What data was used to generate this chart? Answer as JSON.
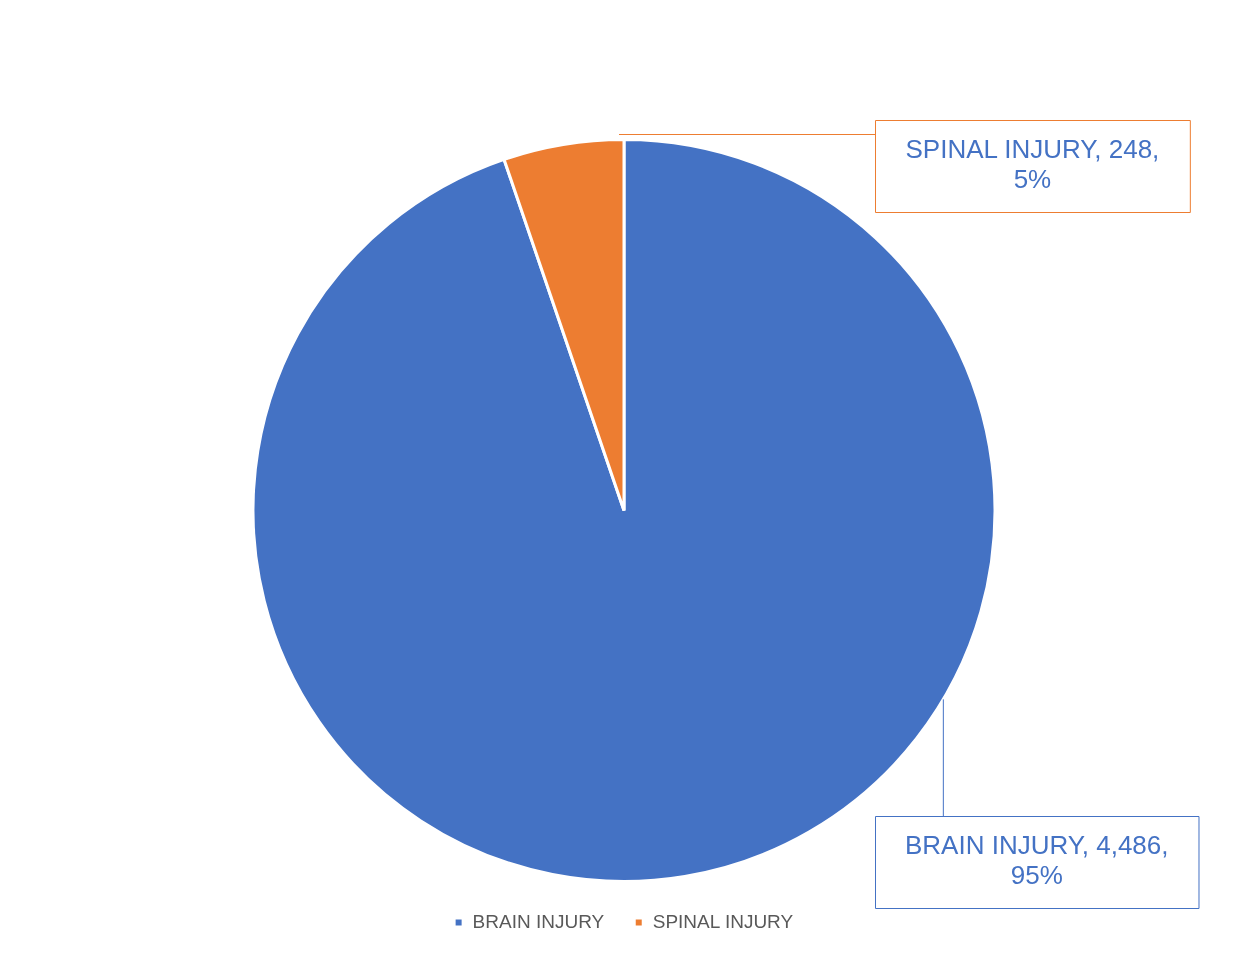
{
  "chart_data": {
    "type": "pie",
    "categories": [
      "BRAIN INJURY",
      "SPINAL INJURY"
    ],
    "values": [
      4486,
      248
    ],
    "colors": [
      "#4472c4",
      "#ed7d31"
    ],
    "value_labels": [
      "BRAIN INJURY, 4,486, 95%",
      "SPINAL INJURY, 248, 5%"
    ],
    "legend": "bottom"
  }
}
